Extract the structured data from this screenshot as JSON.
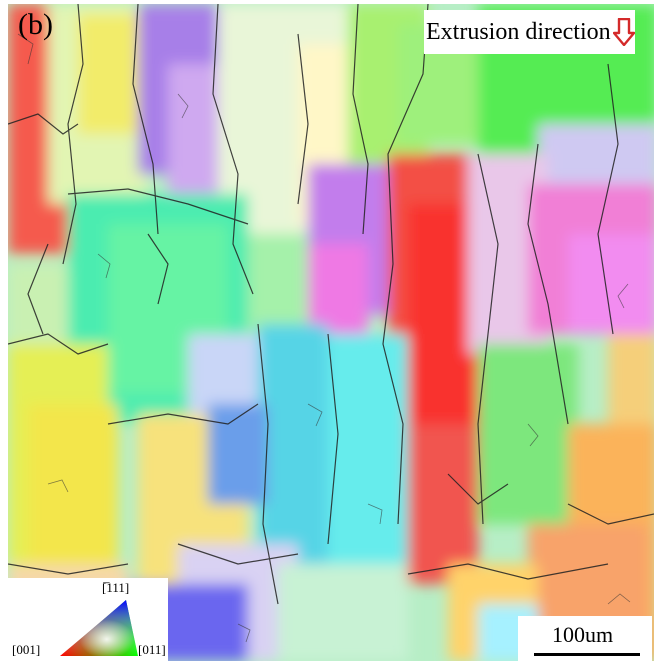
{
  "figure": {
    "panel_label": "(b)",
    "direction_label": "Extrusion direction",
    "direction_arrow_color": "#d42a2a",
    "ipf_key": {
      "top_label": "[̅111]",
      "left_label": "[001]",
      "right_label": "[011]",
      "colors": {
        "001": "#ff0000",
        "011": "#00ff00",
        "111": "#0000ff"
      }
    },
    "scale_bar_label": "100um"
  }
}
